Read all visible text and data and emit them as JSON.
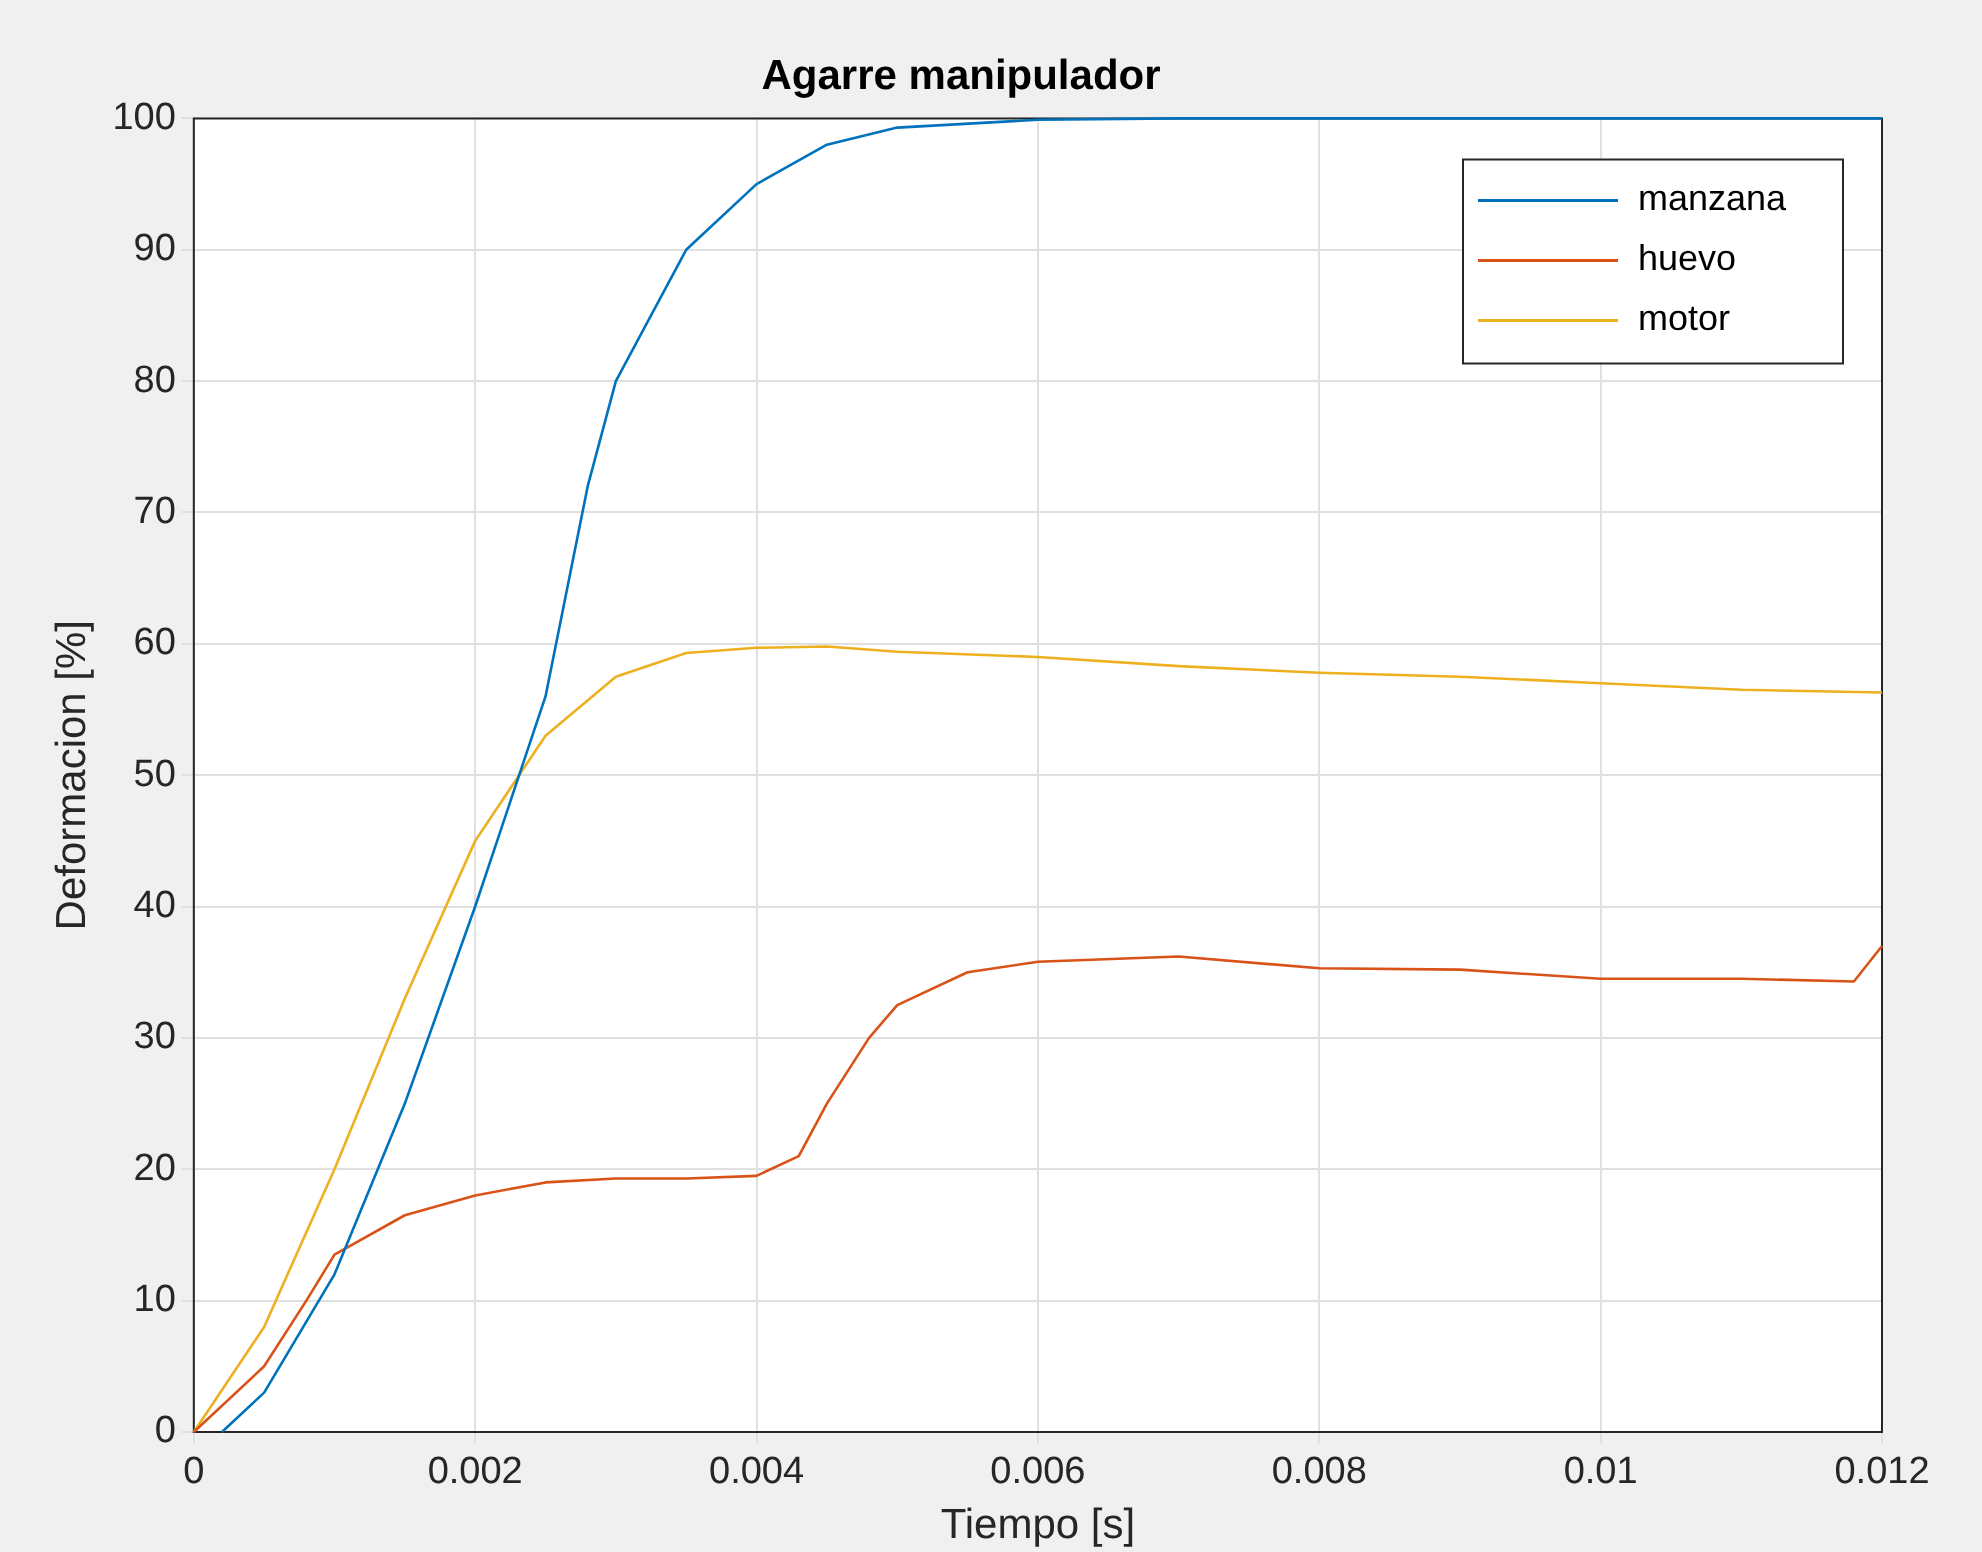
{
  "chart_data": {
    "type": "line",
    "title": "Agarre manipulador",
    "xlabel": "Tiempo [s]",
    "ylabel": "Deformacion [%]",
    "xlim": [
      0,
      0.012
    ],
    "xticks": [
      0,
      0.002,
      0.004,
      0.006,
      0.008,
      0.01,
      0.012
    ],
    "ylim": [
      0,
      100
    ],
    "yticks": [
      0,
      10,
      20,
      30,
      40,
      50,
      60,
      70,
      80,
      90,
      100
    ],
    "grid": true,
    "legend": "top right",
    "marker": "none",
    "line_style": "solid",
    "series": [
      {
        "name": "manzana",
        "color": "#0072bd",
        "x": [
          0.0002,
          0.0005,
          0.001,
          0.0015,
          0.002,
          0.0025,
          0.0028,
          0.003,
          0.0035,
          0.004,
          0.0045,
          0.005,
          0.006,
          0.007,
          0.012
        ],
        "values": [
          0,
          3,
          12,
          25,
          40,
          56,
          72,
          80,
          90,
          95,
          98,
          99.3,
          99.9,
          100,
          100
        ]
      },
      {
        "name": "huevo",
        "color": "#d95319",
        "x": [
          0,
          0.0005,
          0.0008,
          0.001,
          0.0015,
          0.002,
          0.0025,
          0.003,
          0.0035,
          0.004,
          0.0043,
          0.0045,
          0.0048,
          0.005,
          0.0055,
          0.006,
          0.007,
          0.008,
          0.009,
          0.01,
          0.011,
          0.0118,
          0.012
        ],
        "values": [
          0,
          5,
          10,
          13.5,
          16.5,
          18,
          19,
          19.3,
          19.3,
          19.5,
          21,
          25,
          30,
          32.5,
          35,
          35.8,
          36.2,
          35.3,
          35.2,
          34.5,
          34.5,
          34.3,
          37
        ]
      },
      {
        "name": "motor",
        "color": "#edb120",
        "x": [
          0,
          0.0005,
          0.001,
          0.0015,
          0.002,
          0.0025,
          0.003,
          0.0035,
          0.004,
          0.0045,
          0.005,
          0.006,
          0.007,
          0.008,
          0.009,
          0.01,
          0.011,
          0.012
        ],
        "values": [
          0,
          8,
          20,
          33,
          45,
          53,
          57.5,
          59.3,
          59.7,
          59.8,
          59.4,
          59,
          58.3,
          57.8,
          57.5,
          57,
          56.5,
          56.3
        ]
      }
    ]
  }
}
